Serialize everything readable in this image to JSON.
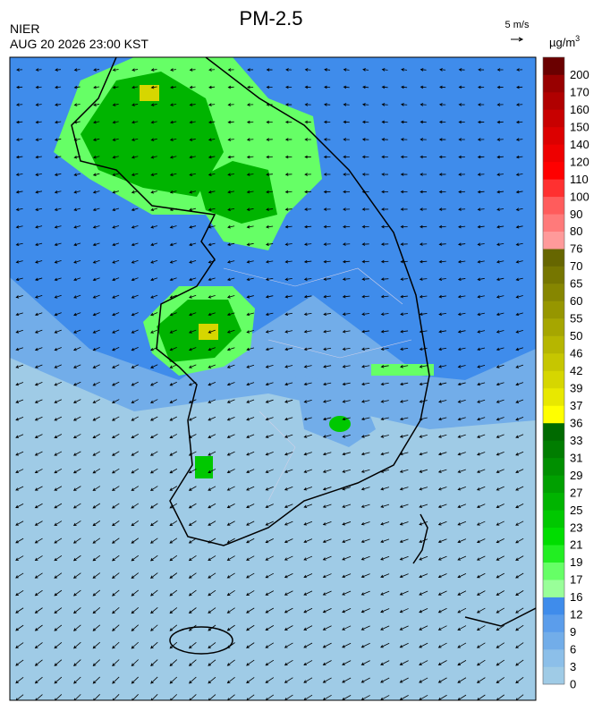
{
  "header": {
    "title": "PM-2.5",
    "agency": "NIER",
    "datetime": "AUG 20 2026 23:00 KST"
  },
  "wind_scale": {
    "label": "5 m/s"
  },
  "legend": {
    "unit": "µg/m",
    "unit_sup": "3",
    "ticks": [
      0,
      3,
      6,
      9,
      12,
      16,
      17,
      19,
      21,
      23,
      25,
      27,
      29,
      31,
      33,
      36,
      37,
      39,
      42,
      46,
      50,
      55,
      60,
      65,
      70,
      76,
      80,
      90,
      100,
      110,
      120,
      140,
      150,
      160,
      170,
      200
    ],
    "colors": [
      "#9fcbe6",
      "#8cbfe9",
      "#72ade9",
      "#5b9deb",
      "#3f8ceb",
      "#99ff99",
      "#66ff66",
      "#22ee22",
      "#00dd00",
      "#00c800",
      "#00b400",
      "#00a000",
      "#008f00",
      "#007d00",
      "#006a00",
      "#ffff00",
      "#e8e800",
      "#d6d600",
      "#c6c600",
      "#b6b600",
      "#a6a600",
      "#969600",
      "#868600",
      "#767600",
      "#666600",
      "#ff9a9a",
      "#ff7a7a",
      "#ff5c5c",
      "#ff3030",
      "#ff0000",
      "#ee0000",
      "#dc0000",
      "#c80000",
      "#b00000",
      "#980000",
      "#6a0000"
    ]
  }
}
